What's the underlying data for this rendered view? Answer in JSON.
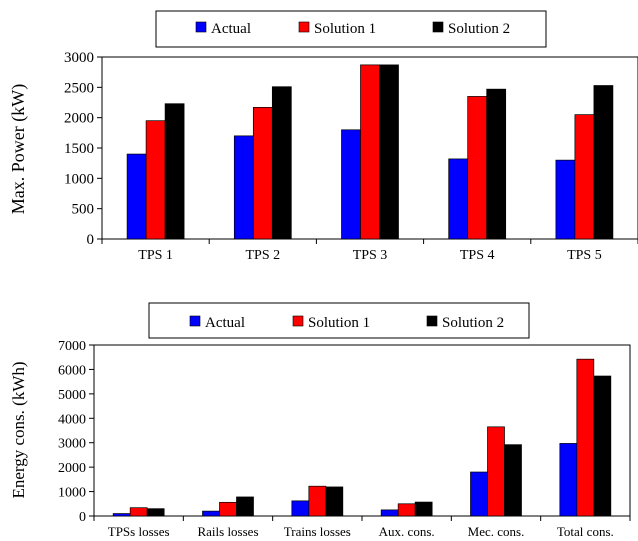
{
  "chart_data": [
    {
      "type": "bar",
      "ylabel": "Max. Power (kW)",
      "categories": [
        "TPS 1",
        "TPS 2",
        "TPS 3",
        "TPS 4",
        "TPS 5"
      ],
      "yticks": [
        "0",
        "500",
        "1000",
        "1500",
        "2000",
        "2500",
        "3000"
      ],
      "ylim": [
        0,
        3000
      ],
      "series": [
        {
          "name": "Actual",
          "color": "#0000ff",
          "values": [
            1400,
            1700,
            1800,
            1320,
            1300
          ]
        },
        {
          "name": "Solution 1",
          "color": "#ff0000",
          "values": [
            1950,
            2170,
            2870,
            2350,
            2050
          ]
        },
        {
          "name": "Solution 2",
          "color": "#000000",
          "values": [
            2230,
            2510,
            2870,
            2470,
            2530
          ]
        }
      ],
      "legend_position": "top",
      "grid": false
    },
    {
      "type": "bar",
      "ylabel": "Energy cons. (kWh)",
      "categories": [
        "TPSs losses",
        "Rails losses",
        "Trains losses",
        "Aux. cons.",
        "Mec. cons.",
        "Total cons."
      ],
      "yticks": [
        "0",
        "1000",
        "2000",
        "3000",
        "4000",
        "5000",
        "6000",
        "7000"
      ],
      "ylim": [
        0,
        7000
      ],
      "series": [
        {
          "name": "Actual",
          "color": "#0000ff",
          "values": [
            100,
            200,
            620,
            250,
            1800,
            2970
          ]
        },
        {
          "name": "Solution 1",
          "color": "#ff0000",
          "values": [
            340,
            560,
            1220,
            500,
            3650,
            6420
          ]
        },
        {
          "name": "Solution 2",
          "color": "#000000",
          "values": [
            300,
            780,
            1190,
            570,
            2920,
            5730
          ]
        }
      ],
      "legend_position": "top",
      "grid": false
    }
  ]
}
